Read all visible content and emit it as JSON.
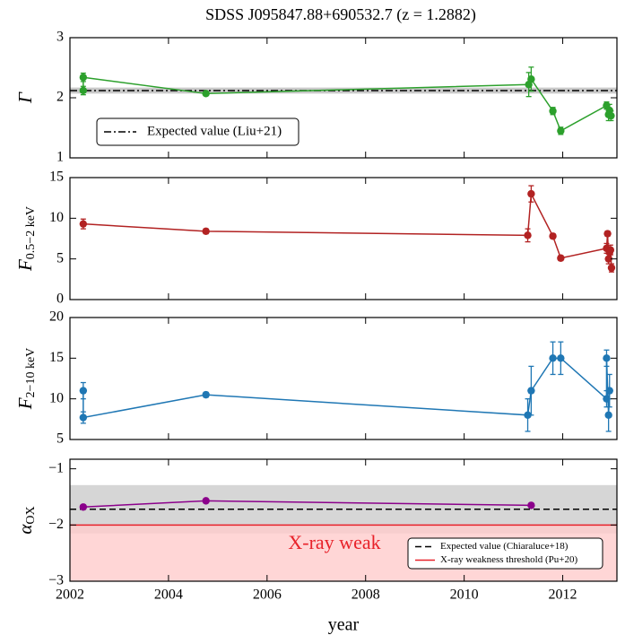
{
  "title": "SDSS J095847.88+690532.7 (z = 1.2882)",
  "chart_data": [
    {
      "type": "line",
      "ylabel": "Γ",
      "ylim": [
        1,
        3
      ],
      "yticks": [
        1,
        2,
        3
      ],
      "xlim": [
        2002,
        2013.1
      ],
      "xticks": [
        2002,
        2004,
        2006,
        2008,
        2010,
        2012
      ],
      "bands": [
        {
          "range": [
            2.07,
            2.17
          ],
          "color": "#bbbbbb"
        }
      ],
      "hlines": [
        {
          "value": 2.12,
          "style": "dashdot",
          "color": "#000000",
          "label": "Expected value (Liu+21)"
        }
      ],
      "legend": "lower left",
      "series": [
        {
          "color": "#2ca02c",
          "x": [
            2002.27,
            2002.27,
            2004.76,
            2011.31,
            2011.36,
            2011.8,
            2011.96,
            2012.89,
            2012.93,
            2012.95,
            2012.98
          ],
          "values": [
            2.12,
            2.34,
            2.07,
            2.22,
            2.31,
            1.78,
            1.45,
            1.87,
            1.72,
            1.79,
            1.7
          ],
          "errors": [
            0.07,
            0.07,
            0.03,
            0.2,
            0.2,
            0.06,
            0.06,
            0.06,
            0.1,
            0.1,
            0.08
          ]
        }
      ]
    },
    {
      "type": "line",
      "ylabel": "F",
      "ylabel_sub": "0.5−2 keV",
      "ylim": [
        0,
        15
      ],
      "yticks": [
        0,
        5,
        10,
        15
      ],
      "xlim": [
        2002,
        2013.1
      ],
      "xticks": [
        2002,
        2004,
        2006,
        2008,
        2010,
        2012
      ],
      "series": [
        {
          "color": "#b22222",
          "x": [
            2002.27,
            2004.76,
            2011.29,
            2011.36,
            2011.8,
            2011.96,
            2012.89,
            2012.91,
            2012.93,
            2012.95,
            2012.97,
            2012.99
          ],
          "values": [
            9.3,
            8.4,
            7.9,
            13.0,
            7.8,
            5.1,
            6.3,
            8.1,
            5.0,
            5.8,
            6.1,
            3.9
          ],
          "errors": [
            0.6,
            0.3,
            0.8,
            1.0,
            0.3,
            0.3,
            0.6,
            0.3,
            0.6,
            0.6,
            0.6,
            0.5
          ]
        }
      ]
    },
    {
      "type": "line",
      "ylabel": "F",
      "ylabel_sub": "2−10 keV",
      "ylim": [
        5,
        20
      ],
      "yticks": [
        5,
        10,
        15,
        20
      ],
      "xlim": [
        2002,
        2013.1
      ],
      "xticks": [
        2002,
        2004,
        2006,
        2008,
        2010,
        2012
      ],
      "series": [
        {
          "color": "#1f77b4",
          "x": [
            2002.27,
            2002.27,
            2004.76,
            2011.29,
            2011.36,
            2011.8,
            2011.96,
            2012.89,
            2012.89,
            2012.93,
            2012.95
          ],
          "values": [
            11,
            7.7,
            10.5,
            8,
            11,
            15,
            15,
            10,
            15,
            8,
            11
          ],
          "errors": [
            1,
            0.7,
            0.3,
            2,
            3,
            2,
            2,
            1,
            1,
            2,
            2
          ]
        }
      ]
    },
    {
      "type": "line",
      "ylabel": "α",
      "ylabel_sub": "OX",
      "xlabel": "year",
      "ylim": [
        -3,
        -0.83
      ],
      "yticks": [
        {
          "value": -3,
          "label": "−3"
        },
        {
          "value": -2,
          "label": "−2"
        },
        {
          "value": -1,
          "label": "−1"
        }
      ],
      "xlim": [
        2002,
        2013.1
      ],
      "xticks": [
        2002,
        2004,
        2006,
        2008,
        2010,
        2012
      ],
      "bands": [
        {
          "range": [
            -2.15,
            -1.29
          ],
          "color": "#cccccc"
        },
        {
          "range": [
            -3,
            -2
          ],
          "color": "#ffcccc"
        }
      ],
      "hlines": [
        {
          "value": -1.72,
          "style": "dashed",
          "color": "#000000",
          "label": "Expected value (Chiaraluce+18)"
        },
        {
          "value": -2,
          "style": "solid",
          "color": "#e8222a",
          "label": "X-ray weakness threshold (Pu+20)"
        }
      ],
      "annotation": "X-ray weak",
      "legend": "lower right",
      "series": [
        {
          "color": "#8b008b",
          "x": [
            2002.27,
            2004.76,
            2011.36
          ],
          "values": [
            -1.68,
            -1.57,
            -1.65
          ]
        }
      ]
    }
  ]
}
